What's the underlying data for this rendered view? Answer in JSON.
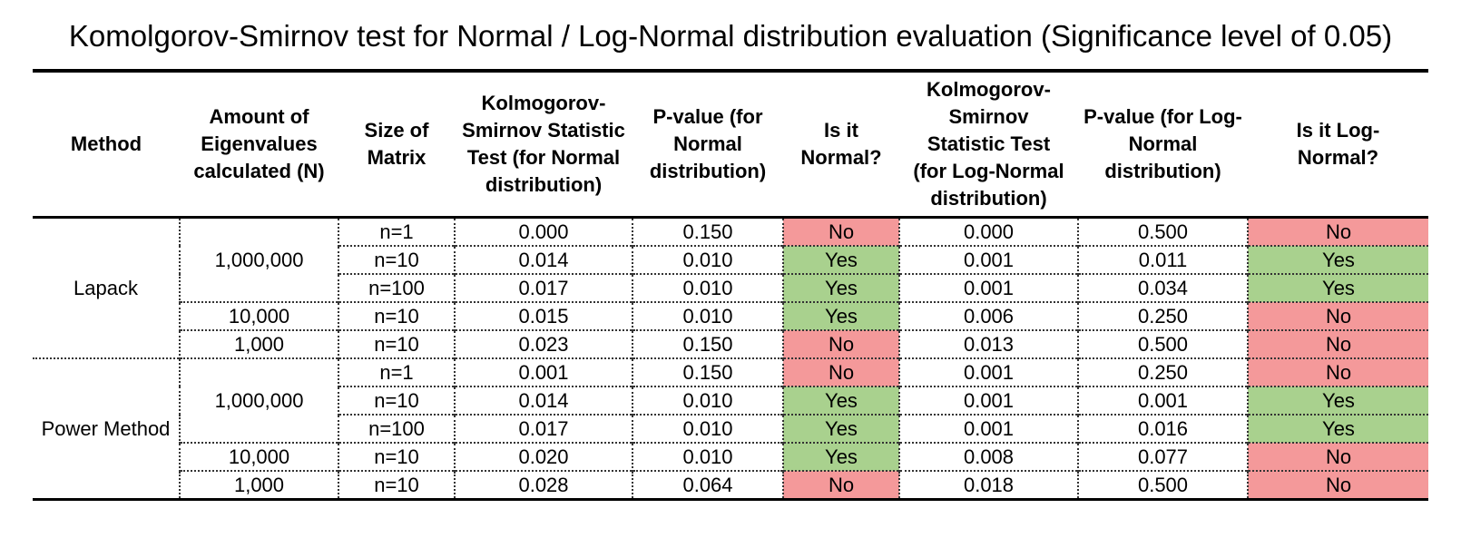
{
  "title": "Komolgorov-Smirnov test for Normal / Log-Normal distribution evaluation (Significance level of 0.05)",
  "headers": {
    "method": "Method",
    "amount": "Amount of Eigenvalues calculated (N)",
    "size": "Size of Matrix",
    "ks_normal": "Kolmogorov-Smirnov Statistic Test (for Normal distribution)",
    "p_normal": "P-value (for Normal distribution)",
    "is_normal": "Is it Normal?",
    "ks_lognormal": "Kolmogorov-Smirnov Statistic Test (for Log-Normal distribution)",
    "p_lognormal": "P-value (for Log-Normal distribution)",
    "is_lognormal": "Is it Log-Normal?"
  },
  "methods": [
    {
      "name": "Lapack",
      "groups": [
        {
          "n": "1,000,000",
          "rows": [
            {
              "size": "n=1",
              "ks_normal": "0.000",
              "p_normal": "0.150",
              "is_normal": "No",
              "ks_lognormal": "0.000",
              "p_lognormal": "0.500",
              "is_lognormal": "No"
            },
            {
              "size": "n=10",
              "ks_normal": "0.014",
              "p_normal": "0.010",
              "is_normal": "Yes",
              "ks_lognormal": "0.001",
              "p_lognormal": "0.011",
              "is_lognormal": "Yes"
            },
            {
              "size": "n=100",
              "ks_normal": "0.017",
              "p_normal": "0.010",
              "is_normal": "Yes",
              "ks_lognormal": "0.001",
              "p_lognormal": "0.034",
              "is_lognormal": "Yes"
            }
          ]
        },
        {
          "n": "10,000",
          "rows": [
            {
              "size": "n=10",
              "ks_normal": "0.015",
              "p_normal": "0.010",
              "is_normal": "Yes",
              "ks_lognormal": "0.006",
              "p_lognormal": "0.250",
              "is_lognormal": "No"
            }
          ]
        },
        {
          "n": "1,000",
          "rows": [
            {
              "size": "n=10",
              "ks_normal": "0.023",
              "p_normal": "0.150",
              "is_normal": "No",
              "ks_lognormal": "0.013",
              "p_lognormal": "0.500",
              "is_lognormal": "No"
            }
          ]
        }
      ]
    },
    {
      "name": "Power Method",
      "groups": [
        {
          "n": "1,000,000",
          "rows": [
            {
              "size": "n=1",
              "ks_normal": "0.001",
              "p_normal": "0.150",
              "is_normal": "No",
              "ks_lognormal": "0.001",
              "p_lognormal": "0.250",
              "is_lognormal": "No"
            },
            {
              "size": "n=10",
              "ks_normal": "0.014",
              "p_normal": "0.010",
              "is_normal": "Yes",
              "ks_lognormal": "0.001",
              "p_lognormal": "0.001",
              "is_lognormal": "Yes"
            },
            {
              "size": "n=100",
              "ks_normal": "0.017",
              "p_normal": "0.010",
              "is_normal": "Yes",
              "ks_lognormal": "0.001",
              "p_lognormal": "0.016",
              "is_lognormal": "Yes"
            }
          ]
        },
        {
          "n": "10,000",
          "rows": [
            {
              "size": "n=10",
              "ks_normal": "0.020",
              "p_normal": "0.010",
              "is_normal": "Yes",
              "ks_lognormal": "0.008",
              "p_lognormal": "0.077",
              "is_lognormal": "No"
            }
          ]
        },
        {
          "n": "1,000",
          "rows": [
            {
              "size": "n=10",
              "ks_normal": "0.028",
              "p_normal": "0.064",
              "is_normal": "No",
              "ks_lognormal": "0.018",
              "p_lognormal": "0.500",
              "is_lognormal": "No"
            }
          ]
        }
      ]
    }
  ],
  "colors": {
    "yes": "#a9d18e",
    "no": "#f4999a"
  }
}
